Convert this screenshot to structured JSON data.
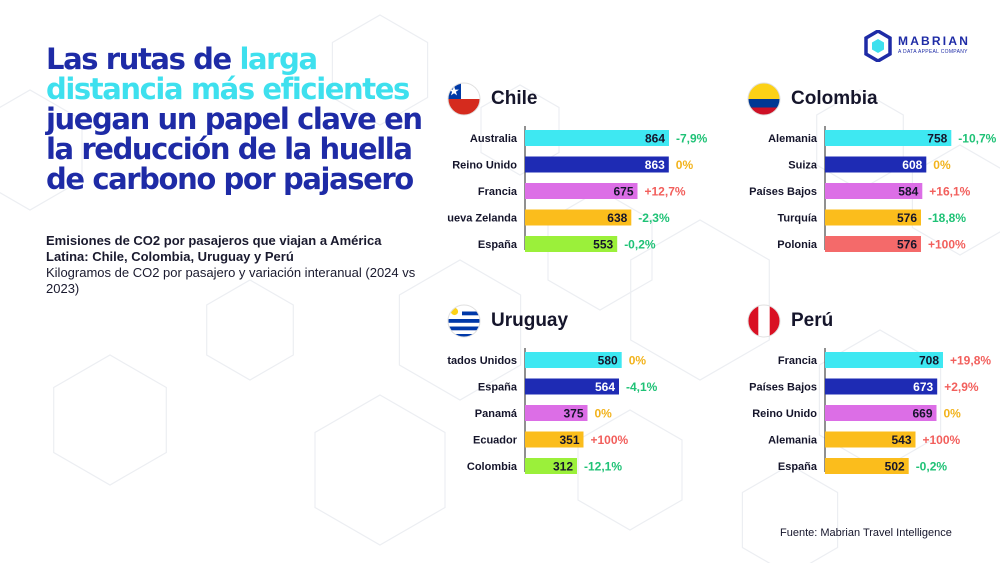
{
  "headline": {
    "part1": "Las rutas de ",
    "highlight": "larga distancia más eficientes",
    "part2": " juegan un papel clave en la reducción de la huella de carbono por pajasero"
  },
  "subtitle": {
    "bold": "Emisiones de CO2 por pasajeros que viajan a América Latina: Chile, Colombia, Uruguay y Perú",
    "normal": "Kilogramos de CO2 por pasajero y variación interanual (2024 vs 2023)"
  },
  "logo": {
    "brand": "MABRIAN",
    "tagline": "A DATA APPEAL COMPANY"
  },
  "source": "Fuente: Mabrian Travel Intelligence",
  "colors": {
    "bar_colors": [
      "#3ee8f2",
      "#1e2bb4",
      "#dc6ee6",
      "#fbbd1c",
      "#9bf03a"
    ],
    "peru_bar_colors": [
      "#3ee8f2",
      "#1e2bb4",
      "#dc6ee6",
      "#fbbd1c",
      "#fbbd1c"
    ],
    "colombia_bar_colors": [
      "#3ee8f2",
      "#1e2bb4",
      "#dc6ee6",
      "#fbbd1c",
      "#f46a6a"
    ],
    "negative": "#1fc276",
    "positive": "#f25f5c",
    "zero": "#f2b31c",
    "title_blue": "#1e2ba6",
    "title_highlight": "#3ee0ee"
  },
  "chart_data": [
    {
      "type": "bar",
      "country": "Chile",
      "flag": "chile-flag",
      "categories": [
        "Australia",
        "Reino Unido",
        "Francia",
        "Nueva Zelanda",
        "España"
      ],
      "values": [
        864,
        863,
        675,
        638,
        553
      ],
      "changes": [
        "-7,9%",
        "0%",
        "+12,7%",
        "-2,3%",
        "-0,2%"
      ]
    },
    {
      "type": "bar",
      "country": "Colombia",
      "flag": "colombia-flag",
      "categories": [
        "Alemania",
        "Suiza",
        "Países Bajos",
        "Turquía",
        "Polonia"
      ],
      "values": [
        758,
        608,
        584,
        576,
        576
      ],
      "changes": [
        "-10,7%",
        "0%",
        "+16,1%",
        "-18,8%",
        "+100%"
      ]
    },
    {
      "type": "bar",
      "country": "Uruguay",
      "flag": "uruguay-flag",
      "categories": [
        "Estados Unidos",
        "España",
        "Panamá",
        "Ecuador",
        "Colombia"
      ],
      "values": [
        580,
        564,
        375,
        351,
        312
      ],
      "changes": [
        "0%",
        "-4,1%",
        "0%",
        "+100%",
        "-12,1%"
      ]
    },
    {
      "type": "bar",
      "country": "Perú",
      "flag": "peru-flag",
      "categories": [
        "Francia",
        "Países Bajos",
        "Reino Unido",
        "Alemania",
        "España"
      ],
      "values": [
        708,
        673,
        669,
        543,
        502
      ],
      "changes": [
        "+19,8%",
        "+2,9%",
        "0%",
        "+100%",
        "-0,2%"
      ]
    }
  ]
}
